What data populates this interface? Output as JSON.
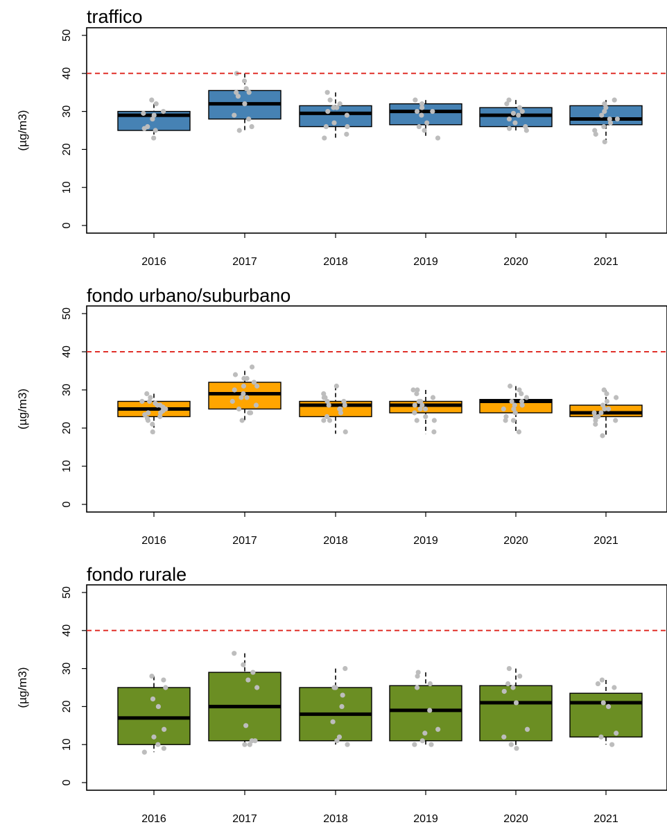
{
  "chart_data": [
    {
      "type": "box",
      "title": "traffico",
      "ylabel": "(µg/m3)",
      "ylim": [
        0,
        50
      ],
      "yticks": [
        0,
        10,
        20,
        30,
        40,
        50
      ],
      "categories": [
        "2016",
        "2017",
        "2018",
        "2019",
        "2020",
        "2021"
      ],
      "limit_line": 40,
      "limit_color": "#e0302a",
      "fill_color": "#4682b4",
      "point_color": "#bdbdbd",
      "boxes": [
        {
          "q1": 25,
          "median": 29,
          "q3": 30,
          "whisker_low": 23,
          "whisker_high": 32
        },
        {
          "q1": 28,
          "median": 32,
          "q3": 35.5,
          "whisker_low": 25,
          "whisker_high": 40
        },
        {
          "q1": 26,
          "median": 29.5,
          "q3": 31.5,
          "whisker_low": 22.5,
          "whisker_high": 35
        },
        {
          "q1": 26.5,
          "median": 30,
          "q3": 32,
          "whisker_low": 23,
          "whisker_high": 33
        },
        {
          "q1": 26,
          "median": 29,
          "q3": 31,
          "whisker_low": 25,
          "whisker_high": 33
        },
        {
          "q1": 26.5,
          "median": 28,
          "q3": 31.5,
          "whisker_low": 22,
          "whisker_high": 33
        }
      ],
      "points": [
        [
          23,
          25,
          25.5,
          26,
          28,
          29,
          29.5,
          30,
          32,
          33
        ],
        [
          25,
          26,
          28,
          29,
          32,
          34,
          35,
          35,
          36,
          38,
          40
        ],
        [
          23,
          24,
          26,
          26,
          27,
          29,
          30,
          31,
          31,
          32,
          33,
          35
        ],
        [
          23,
          25,
          26,
          27,
          29,
          30,
          30,
          31,
          32,
          33
        ],
        [
          25,
          25.5,
          26,
          27,
          28,
          29,
          29.5,
          30,
          31,
          32,
          33
        ],
        [
          22,
          24,
          25,
          26,
          27,
          28,
          28,
          29,
          30,
          31,
          32,
          33
        ]
      ]
    },
    {
      "type": "box",
      "title": "fondo urbano/suburbano",
      "ylabel": "(µg/m3)",
      "ylim": [
        0,
        50
      ],
      "yticks": [
        0,
        10,
        20,
        30,
        40,
        50
      ],
      "categories": [
        "2016",
        "2017",
        "2018",
        "2019",
        "2020",
        "2021"
      ],
      "limit_line": 40,
      "limit_color": "#e0302a",
      "fill_color": "#ffa500",
      "point_color": "#bdbdbd",
      "boxes": [
        {
          "q1": 23,
          "median": 25,
          "q3": 27,
          "whisker_low": 18.5,
          "whisker_high": 29
        },
        {
          "q1": 25,
          "median": 29,
          "q3": 32,
          "whisker_low": 22,
          "whisker_high": 35
        },
        {
          "q1": 23,
          "median": 26,
          "q3": 27,
          "whisker_low": 18.5,
          "whisker_high": 31
        },
        {
          "q1": 24,
          "median": 26,
          "q3": 27,
          "whisker_low": 18.5,
          "whisker_high": 30
        },
        {
          "q1": 24,
          "median": 27,
          "q3": 27.5,
          "whisker_low": 19,
          "whisker_high": 31
        },
        {
          "q1": 23,
          "median": 24,
          "q3": 26,
          "whisker_low": 18,
          "whisker_high": 30
        }
      ],
      "points": [
        [
          19,
          21,
          22,
          22.5,
          23,
          23.5,
          24,
          24,
          24.5,
          25,
          25,
          25.5,
          26,
          26,
          26.5,
          27,
          27,
          28,
          29
        ],
        [
          22,
          24,
          24,
          25,
          26,
          27,
          28,
          28,
          29,
          30,
          31,
          31,
          32,
          33,
          33,
          34,
          36
        ],
        [
          19,
          22,
          22,
          23,
          24,
          25,
          25,
          26,
          26,
          27,
          27,
          28,
          28,
          29,
          31
        ],
        [
          19,
          22,
          22,
          23,
          24,
          25,
          25,
          26,
          26,
          27,
          27,
          28,
          29,
          30,
          30
        ],
        [
          19,
          22,
          22,
          23,
          24,
          25,
          25,
          26,
          26,
          27,
          27,
          28,
          29,
          30,
          31
        ],
        [
          18,
          21,
          22,
          22,
          23,
          23,
          24,
          24,
          25,
          25,
          26,
          27,
          28,
          29,
          30
        ]
      ]
    },
    {
      "type": "box",
      "title": "fondo rurale",
      "ylabel": "(µg/m3)",
      "ylim": [
        0,
        50
      ],
      "yticks": [
        0,
        10,
        20,
        30,
        40,
        50
      ],
      "categories": [
        "2016",
        "2017",
        "2018",
        "2019",
        "2020",
        "2021"
      ],
      "limit_line": 40,
      "limit_color": "#e0302a",
      "fill_color": "#6b8e23",
      "point_color": "#bdbdbd",
      "boxes": [
        {
          "q1": 10,
          "median": 17,
          "q3": 25,
          "whisker_low": 8,
          "whisker_high": 28
        },
        {
          "q1": 11,
          "median": 20,
          "q3": 29,
          "whisker_low": 10,
          "whisker_high": 34
        },
        {
          "q1": 11,
          "median": 18,
          "q3": 25,
          "whisker_low": 10,
          "whisker_high": 30
        },
        {
          "q1": 11,
          "median": 19,
          "q3": 25.5,
          "whisker_low": 10,
          "whisker_high": 29
        },
        {
          "q1": 11,
          "median": 21,
          "q3": 25.5,
          "whisker_low": 9,
          "whisker_high": 30
        },
        {
          "q1": 12,
          "median": 21,
          "q3": 23.5,
          "whisker_low": 10,
          "whisker_high": 27
        }
      ],
      "points": [
        [
          8,
          9,
          10,
          12,
          14,
          20,
          22,
          25,
          27,
          28
        ],
        [
          10,
          10,
          11,
          11,
          15,
          25,
          27,
          29,
          31,
          34
        ],
        [
          10,
          11,
          12,
          16,
          20,
          23,
          25,
          25,
          30
        ],
        [
          10,
          10,
          11,
          13,
          14,
          19,
          25,
          26,
          28,
          29
        ],
        [
          9,
          10,
          12,
          14,
          21,
          24,
          25,
          26,
          28,
          30
        ],
        [
          10,
          12,
          13,
          20,
          21,
          25,
          26,
          27
        ]
      ]
    }
  ]
}
